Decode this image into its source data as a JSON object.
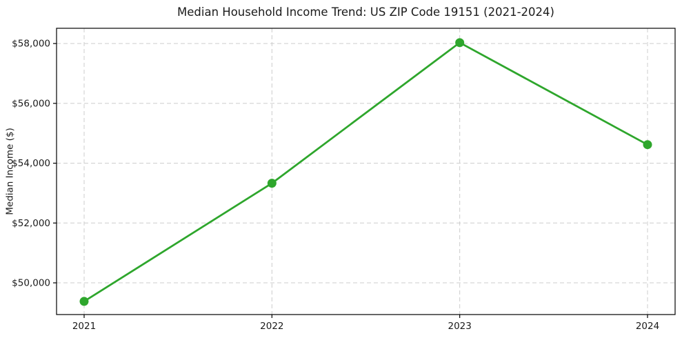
{
  "chart_data": {
    "type": "line",
    "title": "Median Household Income Trend: US ZIP Code 19151 (2021-2024)",
    "xlabel": "",
    "ylabel": "Median Income ($)",
    "x": [
      2021,
      2022,
      2023,
      2024
    ],
    "xtick_labels": [
      "2021",
      "2022",
      "2023",
      "2024"
    ],
    "series": [
      {
        "name": "Median Household Income",
        "values": [
          49380,
          53330,
          58030,
          54620
        ]
      }
    ],
    "yticks": [
      50000,
      52000,
      54000,
      56000,
      58000
    ],
    "ytick_labels": [
      "$50,000",
      "$52,000",
      "$54,000",
      "$56,000",
      "$58,000"
    ],
    "ylim": [
      48940,
      58510
    ],
    "grid": true,
    "legend": "none",
    "colors": {
      "line": "#2ea62c",
      "marker": "#2ea62c",
      "grid": "#cccccc",
      "spine": "#000000",
      "text": "#1a1a1a",
      "background": "#ffffff"
    }
  }
}
